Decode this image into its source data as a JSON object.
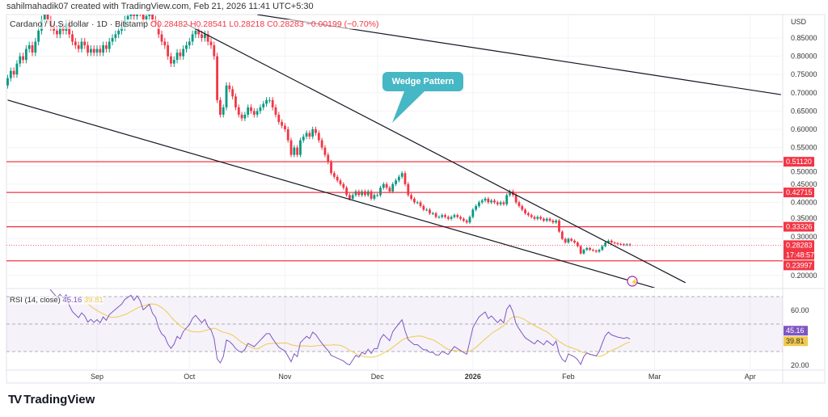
{
  "credit": "sahilmahadik07 created with TradingView.com, Feb 21, 2026 11:41 UTC+5:30",
  "legend": {
    "symbol": "Cardano / U.S. dollar · 1D · Bitstamp",
    "open": "O0.28482",
    "high": "H0.28541",
    "low": "L0.28218",
    "close": "C0.28283",
    "change": "−0.00199 (−0.70%)"
  },
  "rsi_legend": {
    "label": "RSI (14, close)",
    "rsi": "45.16",
    "ma": "39.81"
  },
  "annotation": "Wedge Pattern",
  "footer": {
    "logo_text": "TradingView"
  },
  "colors": {
    "up": "#089981",
    "down": "#f23645",
    "level": "#f23645",
    "rsi": "#7e57c2",
    "rsi_ma": "#f2c94c",
    "callout": "#46b7c4",
    "trendline": "#131722"
  },
  "chart_data": {
    "type": "candlestick",
    "currency": "USD",
    "last_date": "2026-02-21",
    "interval": "1D",
    "ylim": [
      0.166,
      0.914
    ],
    "y_ticks": [
      "0.85000",
      "0.80000",
      "0.75000",
      "0.70000",
      "0.65000",
      "0.60000",
      "0.55000",
      "0.50000",
      "0.45000",
      "0.40000",
      "0.35000",
      "0.30000",
      "0.20000"
    ],
    "x_ticks": [
      {
        "label": "Sep",
        "date": "2025-09-01"
      },
      {
        "label": "Oct",
        "date": "2025-10-01"
      },
      {
        "label": "Nov",
        "date": "2025-11-01"
      },
      {
        "label": "Dec",
        "date": "2025-12-01"
      },
      {
        "label": "2026",
        "date": "2026-01-01",
        "bold": true
      },
      {
        "label": "Feb",
        "date": "2026-02-01"
      },
      {
        "label": "Mar",
        "date": "2026-03-01"
      },
      {
        "label": "Apr",
        "date": "2026-04-01"
      }
    ],
    "closes": [
      0.72,
      0.74,
      0.76,
      0.75,
      0.78,
      0.8,
      0.79,
      0.82,
      0.83,
      0.81,
      0.84,
      0.87,
      0.9,
      0.92,
      0.9,
      0.88,
      0.87,
      0.86,
      0.88,
      0.87,
      0.89,
      0.86,
      0.84,
      0.83,
      0.82,
      0.84,
      0.83,
      0.81,
      0.82,
      0.81,
      0.82,
      0.81,
      0.83,
      0.82,
      0.84,
      0.85,
      0.86,
      0.87,
      0.88,
      0.9,
      0.91,
      0.92,
      0.91,
      0.93,
      0.92,
      0.9,
      0.91,
      0.92,
      0.9,
      0.89,
      0.86,
      0.84,
      0.83,
      0.8,
      0.78,
      0.79,
      0.81,
      0.8,
      0.82,
      0.83,
      0.84,
      0.86,
      0.87,
      0.86,
      0.85,
      0.86,
      0.84,
      0.83,
      0.8,
      0.68,
      0.64,
      0.66,
      0.72,
      0.71,
      0.69,
      0.66,
      0.64,
      0.63,
      0.64,
      0.66,
      0.65,
      0.64,
      0.65,
      0.66,
      0.67,
      0.68,
      0.68,
      0.66,
      0.64,
      0.62,
      0.61,
      0.6,
      0.57,
      0.53,
      0.55,
      0.53,
      0.57,
      0.58,
      0.59,
      0.58,
      0.6,
      0.59,
      0.57,
      0.55,
      0.53,
      0.51,
      0.48,
      0.47,
      0.46,
      0.45,
      0.44,
      0.42,
      0.41,
      0.42,
      0.43,
      0.42,
      0.43,
      0.42,
      0.43,
      0.41,
      0.42,
      0.42,
      0.44,
      0.45,
      0.44,
      0.43,
      0.45,
      0.46,
      0.47,
      0.48,
      0.45,
      0.42,
      0.41,
      0.4,
      0.4,
      0.39,
      0.38,
      0.38,
      0.37,
      0.37,
      0.36,
      0.36,
      0.365,
      0.36,
      0.355,
      0.36,
      0.365,
      0.36,
      0.355,
      0.35,
      0.345,
      0.36,
      0.38,
      0.39,
      0.4,
      0.405,
      0.41,
      0.4,
      0.405,
      0.4,
      0.395,
      0.4,
      0.395,
      0.42,
      0.43,
      0.42,
      0.4,
      0.39,
      0.38,
      0.37,
      0.365,
      0.36,
      0.355,
      0.36,
      0.355,
      0.35,
      0.355,
      0.35,
      0.345,
      0.35,
      0.32,
      0.3,
      0.29,
      0.3,
      0.295,
      0.29,
      0.28,
      0.26,
      0.27,
      0.275,
      0.27,
      0.268,
      0.265,
      0.27,
      0.28,
      0.29,
      0.295,
      0.29,
      0.288,
      0.286,
      0.285,
      0.284,
      0.2848,
      0.2828
    ],
    "levels": [
      {
        "price": 0.5112,
        "label": "0.51120"
      },
      {
        "price": 0.42715,
        "label": "0.42715"
      },
      {
        "price": 0.33326,
        "label": "0.33326"
      },
      {
        "price": 0.23997,
        "label": "0.23997"
      }
    ],
    "current_price": {
      "price": 0.28283,
      "label": "0.28283",
      "countdown": "17:48:57"
    },
    "trendlines": [
      {
        "from": {
          "date": "2025-08-03",
          "price": 0.68
        },
        "to": {
          "date": "2026-03-01",
          "price": 0.166
        }
      },
      {
        "from": {
          "date": "2025-09-30",
          "price": 0.888
        },
        "to": {
          "date": "2026-03-11",
          "price": 0.18
        }
      },
      {
        "from": {
          "date": "2025-10-23",
          "price": 0.914
        },
        "to": {
          "date": "2026-04-11",
          "price": 0.695
        }
      }
    ],
    "rsi": {
      "period": 14,
      "ma_period": 14,
      "ticks": [
        "60.00",
        "20.00"
      ],
      "band": [
        30,
        70
      ],
      "ylim": [
        18,
        74
      ],
      "last": "45.16",
      "last_ma": "39.81"
    }
  }
}
